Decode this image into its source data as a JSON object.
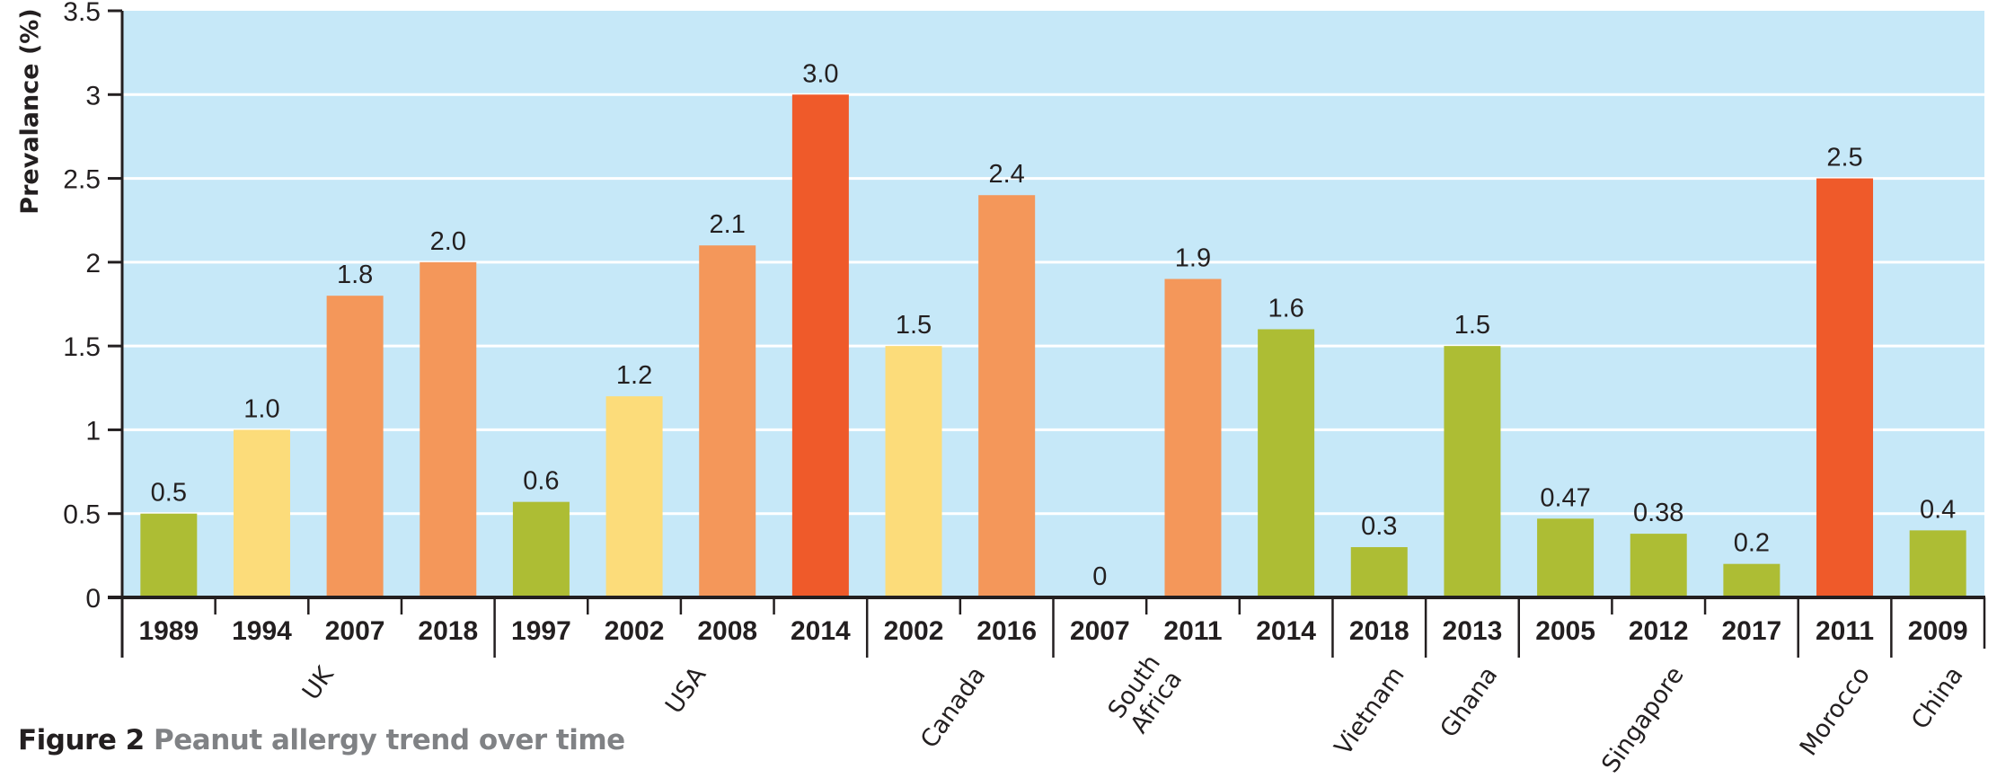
{
  "chart_data": {
    "type": "bar",
    "title": "Peanut allergy trend over time",
    "figure_label": "Figure 2",
    "xlabel": "",
    "ylabel": "Prevalance (%)",
    "ylim": [
      0,
      3.5
    ],
    "yticks": [
      0,
      0.5,
      1,
      1.5,
      2,
      2.5,
      3,
      3.5
    ],
    "ytick_labels": [
      "0",
      "0.5",
      "1",
      "1.5",
      "2",
      "2.5",
      "3",
      "3.5"
    ],
    "grid": true,
    "legend": "none",
    "colors": {
      "background": "#c6e8f8",
      "gridline": "#ffffff",
      "green": "#adbd34",
      "yellow": "#fcdc7a",
      "orange": "#f4975a",
      "red": "#ef5a2a",
      "axis": "#231f20",
      "caption_title": "#808285"
    },
    "groups": [
      {
        "name": "UK",
        "lines": [
          "UK"
        ],
        "bars": [
          {
            "year": "1989",
            "value": 0.5,
            "label": "0.5",
            "color": "green"
          },
          {
            "year": "1994",
            "value": 1.0,
            "label": "1.0",
            "color": "yellow"
          },
          {
            "year": "2007",
            "value": 1.8,
            "label": "1.8",
            "color": "orange"
          },
          {
            "year": "2018",
            "value": 2.0,
            "label": "2.0",
            "color": "orange"
          }
        ]
      },
      {
        "name": "USA",
        "lines": [
          "USA"
        ],
        "bars": [
          {
            "year": "1997",
            "value": 0.57,
            "label": "0.6",
            "color": "green"
          },
          {
            "year": "2002",
            "value": 1.2,
            "label": "1.2",
            "color": "yellow"
          },
          {
            "year": "2008",
            "value": 2.1,
            "label": "2.1",
            "color": "orange"
          },
          {
            "year": "2014",
            "value": 3.0,
            "label": "3.0",
            "color": "red"
          }
        ]
      },
      {
        "name": "Canada",
        "lines": [
          "Canada"
        ],
        "bars": [
          {
            "year": "2002",
            "value": 1.5,
            "label": "1.5",
            "color": "yellow"
          },
          {
            "year": "2016",
            "value": 2.4,
            "label": "2.4",
            "color": "orange"
          }
        ]
      },
      {
        "name": "South Africa",
        "lines": [
          "South",
          "Africa"
        ],
        "bars": [
          {
            "year": "2007",
            "value": 0,
            "label": "0",
            "color": "green"
          },
          {
            "year": "2011",
            "value": 1.9,
            "label": "1.9",
            "color": "orange"
          },
          {
            "year": "2014",
            "value": 1.6,
            "label": "1.6",
            "color": "green"
          }
        ]
      },
      {
        "name": "Vietnam",
        "lines": [
          "Vietnam"
        ],
        "bars": [
          {
            "year": "2018",
            "value": 0.3,
            "label": "0.3",
            "color": "green"
          }
        ]
      },
      {
        "name": "Ghana",
        "lines": [
          "Ghana"
        ],
        "bars": [
          {
            "year": "2013",
            "value": 1.5,
            "label": "1.5",
            "color": "green"
          }
        ]
      },
      {
        "name": "Singapore",
        "lines": [
          "Singapore"
        ],
        "bars": [
          {
            "year": "2005",
            "value": 0.47,
            "label": "0.47",
            "color": "green"
          },
          {
            "year": "2012",
            "value": 0.38,
            "label": "0.38",
            "color": "green"
          },
          {
            "year": "2017",
            "value": 0.2,
            "label": "0.2",
            "color": "green"
          }
        ]
      },
      {
        "name": "Morocco",
        "lines": [
          "Morocco"
        ],
        "bars": [
          {
            "year": "2011",
            "value": 2.5,
            "label": "2.5",
            "color": "red"
          }
        ]
      },
      {
        "name": "China",
        "lines": [
          "China"
        ],
        "bars": [
          {
            "year": "2009",
            "value": 0.4,
            "label": "0.4",
            "color": "green"
          }
        ]
      }
    ]
  },
  "caption": {
    "figure_label": "Figure 2",
    "title": "Peanut allergy trend over time"
  }
}
